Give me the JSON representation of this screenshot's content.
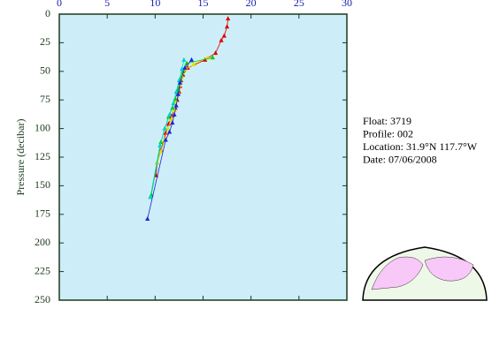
{
  "chart_data": {
    "type": "line",
    "ylabel": "Pressure (decibar)",
    "annotations": [
      "Float:  3719",
      "Profile:  002",
      "Location:  31.9°N  117.7°W",
      "Date:  07/06/2008"
    ],
    "xlim": [
      0,
      30
    ],
    "xticks": [
      0,
      5,
      10,
      15,
      20,
      25,
      30
    ],
    "ylim": [
      0,
      250
    ],
    "yticks": [
      0,
      25,
      50,
      75,
      100,
      125,
      150,
      175,
      200,
      225,
      250
    ],
    "y_inverted": true,
    "series": [
      {
        "color": "#e00000",
        "x": [
          17.6,
          17.5,
          17.2,
          16.9,
          16.3,
          15.2,
          13.4,
          12.9,
          12.7,
          12.6,
          12.5,
          12.3,
          12.1,
          11.7,
          11.4,
          11.1,
          10.6,
          10.2,
          10.1
        ],
        "values": [
          4,
          11,
          19,
          23,
          34,
          40,
          47,
          53,
          58,
          63,
          68,
          75,
          82,
          89,
          96,
          104,
          119,
          130,
          141
        ]
      },
      {
        "color": "#e0e000",
        "x": [
          15.5,
          14.0,
          13.2,
          12.8,
          12.6,
          12.4,
          12.2,
          12.0,
          11.7,
          11.3,
          11.0,
          10.6,
          10.2
        ],
        "values": [
          38,
          44,
          48,
          55,
          62,
          69,
          76,
          84,
          92,
          100,
          110,
          120,
          130
        ]
      },
      {
        "color": "#00d000",
        "x": [
          16.0,
          13.3,
          12.9,
          12.6,
          12.4,
          12.1,
          11.8,
          11.4,
          11.0,
          10.6,
          9.6
        ],
        "values": [
          38,
          43,
          50,
          57,
          66,
          74,
          82,
          90,
          100,
          112,
          158
        ]
      },
      {
        "color": "#00d0d0",
        "x": [
          13.0,
          12.8,
          12.5,
          12.2,
          11.9,
          11.5,
          11.0,
          10.5,
          9.5
        ],
        "values": [
          40,
          48,
          58,
          68,
          78,
          88,
          100,
          115,
          160
        ]
      },
      {
        "color": "#2020e0",
        "x": [
          13.8,
          13.1,
          12.6,
          12.4,
          12.2,
          12.0,
          11.8,
          11.5,
          11.1,
          9.2
        ],
        "values": [
          40,
          47,
          60,
          70,
          80,
          88,
          95,
          103,
          110,
          179
        ]
      }
    ]
  }
}
